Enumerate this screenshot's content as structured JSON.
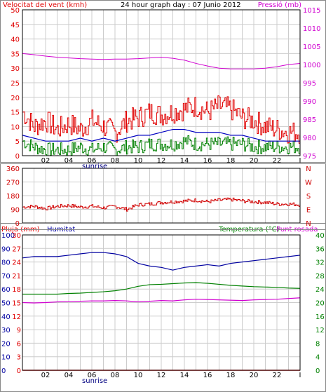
{
  "header": {
    "wind_label": "Velocitat del vent (kmh)",
    "title": "24 hour graph day : 07 Junio 2012",
    "pressure_label": "Pressió (mb)"
  },
  "colors": {
    "wind": "#e00000",
    "wind_avg": "#0000c0",
    "wind_dir": "#d00000",
    "pressure": "#d000d0",
    "rain": "#e00000",
    "humidity": "#0000a0",
    "temperature": "#008000",
    "dewpoint": "#d000d0",
    "grid": "#cccccc",
    "frame": "#000000"
  },
  "axis_common": {
    "hour_ticks": [
      "02",
      "04",
      "06",
      "08",
      "10",
      "12",
      "14",
      "16",
      "18",
      "20",
      "22",
      "I"
    ],
    "sunrise_label": "sunrise"
  },
  "panel_direction": {
    "y_ticks": [
      "360",
      "270",
      "180",
      "90",
      "0"
    ],
    "compass": [
      "N",
      "W",
      "S",
      "E",
      "N"
    ]
  },
  "panel_bottom": {
    "rain_label": "Pluja (mm)",
    "humidity_label": "Humitat",
    "temp_label": "Temperatura (°C)",
    "dew_label": "Punt rosada"
  },
  "chart_data": [
    {
      "type": "line",
      "title": "24 hour graph day : 07 Junio 2012",
      "ylabel": "Velocitat del vent (kmh)",
      "ylim": [
        0,
        50
      ],
      "y_ticks": [
        0,
        5,
        10,
        15,
        20,
        25,
        30,
        35,
        40,
        45,
        50
      ],
      "y2label": "Pressió (mb)",
      "y2lim": [
        975,
        1015
      ],
      "y2_ticks": [
        975,
        980,
        985,
        990,
        995,
        1000,
        1005,
        1010,
        1015
      ],
      "x_hours": [
        0,
        1,
        2,
        3,
        4,
        5,
        6,
        7,
        8,
        9,
        10,
        11,
        12,
        13,
        14,
        15,
        16,
        17,
        18,
        19,
        20,
        21,
        22,
        23,
        24
      ],
      "series": [
        {
          "values": [
            15,
            10,
            12,
            9,
            11,
            9,
            12,
            10,
            8,
            12,
            13,
            15,
            14,
            15,
            16,
            17,
            15,
            17,
            16,
            13,
            12,
            10,
            9,
            8,
            8
          ]
        },
        {
          "values": [
            7,
            6,
            5,
            5,
            5,
            6,
            5,
            6,
            5,
            6,
            7,
            7,
            8,
            9,
            9,
            8,
            8,
            8,
            7,
            7,
            6,
            5,
            5,
            5,
            5
          ]
        },
        {
          "values": [
            5,
            3,
            2,
            2,
            2,
            3,
            2,
            3,
            2,
            3,
            3,
            4,
            4,
            4,
            5,
            4,
            4,
            4,
            4,
            4,
            3,
            3,
            3,
            3,
            3
          ]
        },
        {
          "axis": "y2",
          "values": [
            1003.0,
            1002.7,
            1002.3,
            1002.0,
            1001.8,
            1001.6,
            1001.5,
            1001.4,
            1001.5,
            1001.5,
            1001.6,
            1001.8,
            1002.0,
            1001.7,
            1001.2,
            1000.3,
            999.6,
            999.0,
            998.8,
            998.8,
            998.8,
            999.0,
            999.4,
            1000.0,
            1000.3
          ]
        }
      ]
    },
    {
      "type": "line",
      "ylim": [
        0,
        360
      ],
      "y_ticks": [
        0,
        90,
        180,
        270,
        360
      ],
      "x_hours": [
        0,
        1,
        2,
        3,
        4,
        5,
        6,
        7,
        8,
        9,
        10,
        11,
        12,
        13,
        14,
        15,
        16,
        17,
        18,
        19,
        20,
        21,
        22,
        23,
        24
      ],
      "series": [
        {
          "values": [
            105,
            110,
            95,
            110,
            115,
            105,
            110,
            100,
            110,
            90,
            120,
            125,
            135,
            140,
            145,
            150,
            140,
            150,
            155,
            145,
            140,
            135,
            125,
            125,
            120
          ]
        }
      ]
    },
    {
      "type": "line",
      "ylim": [
        0,
        100
      ],
      "y_ticks": [
        0,
        10,
        20,
        30,
        40,
        50,
        60,
        70,
        80,
        90,
        100
      ],
      "y_rain_ticks": [
        0,
        3,
        6,
        9,
        12,
        15,
        18,
        21,
        24,
        27,
        30
      ],
      "y2lim": [
        0,
        40
      ],
      "y2_ticks": [
        0,
        4,
        8,
        12,
        16,
        20,
        24,
        28,
        32,
        36,
        40
      ],
      "x_hours": [
        0,
        1,
        2,
        3,
        4,
        5,
        6,
        7,
        8,
        9,
        10,
        11,
        12,
        13,
        14,
        15,
        16,
        17,
        18,
        19,
        20,
        21,
        22,
        23,
        24
      ],
      "series": [
        {
          "values": [
            0,
            0,
            0,
            0,
            0,
            0,
            0,
            0,
            0,
            0,
            0,
            0,
            0,
            0,
            0,
            0,
            0,
            0,
            0,
            0,
            0,
            0,
            0,
            0,
            0
          ]
        },
        {
          "values": [
            83,
            84,
            84,
            84,
            85,
            86,
            87,
            87,
            86,
            84,
            79,
            77,
            76,
            74,
            76,
            77,
            78,
            77,
            79,
            80,
            81,
            82,
            83,
            84,
            85
          ]
        },
        {
          "axis": "y2",
          "values": [
            22.5,
            22.5,
            22.5,
            22.5,
            22.7,
            22.8,
            23.0,
            23.2,
            23.5,
            24.0,
            24.8,
            25.3,
            25.4,
            25.6,
            25.8,
            25.9,
            25.7,
            25.4,
            25.1,
            24.9,
            24.7,
            24.6,
            24.5,
            24.3,
            24.2
          ]
        },
        {
          "axis": "y2",
          "values": [
            20.0,
            19.9,
            20.0,
            20.2,
            20.3,
            20.4,
            20.5,
            20.5,
            20.6,
            20.5,
            20.2,
            20.4,
            20.6,
            20.5,
            20.8,
            21.0,
            20.9,
            20.8,
            20.7,
            20.6,
            20.8,
            20.9,
            21.0,
            21.2,
            21.4
          ]
        }
      ]
    }
  ]
}
